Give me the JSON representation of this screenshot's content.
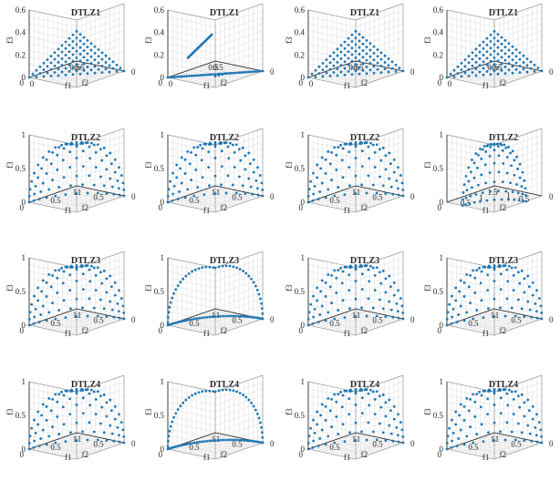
{
  "figure": {
    "rows": [
      "DTLZ1",
      "DTLZ2",
      "DTLZ3",
      "DTLZ4"
    ],
    "columns": 4,
    "marker_color": "#1f77b4",
    "grid_color": "#dcdcdc",
    "axis_color": "#262626"
  },
  "chart_data": [
    {
      "type": "scatter3d",
      "title": "DTLZ1",
      "problem": "DTLZ1",
      "front": "linear",
      "pattern": "uniform",
      "divisions": 13,
      "xlabel": "f1",
      "ylabel": "f2",
      "zlabel": "f3",
      "xlim": [
        0,
        0.5
      ],
      "ylim": [
        0,
        0.5
      ],
      "zlim": [
        0,
        0.6
      ],
      "xticks": [
        "0.5",
        "0"
      ],
      "yticks": [
        "0.5"
      ],
      "zticks": [
        "0",
        "0.2",
        "0.4",
        "0.6"
      ]
    },
    {
      "type": "scatter3d",
      "title": "DTLZ1",
      "problem": "DTLZ1",
      "front": "linear",
      "pattern": "edges",
      "divisions": 40,
      "xlabel": "f1",
      "ylabel": "f2",
      "zlabel": "f3",
      "xlim": [
        0,
        0.5
      ],
      "ylim": [
        0,
        0.5
      ],
      "zlim": [
        0,
        0.6
      ],
      "xticks": [
        "0.5",
        "0"
      ],
      "yticks": [
        "0.5"
      ],
      "zticks": [
        "0",
        "0.2",
        "0.4",
        "0.6"
      ]
    },
    {
      "type": "scatter3d",
      "title": "DTLZ1",
      "problem": "DTLZ1",
      "front": "linear",
      "pattern": "uniform",
      "divisions": 13,
      "xlabel": "f1",
      "ylabel": "f2",
      "zlabel": "f3",
      "xlim": [
        0,
        0.5
      ],
      "ylim": [
        0,
        0.5
      ],
      "zlim": [
        0,
        0.6
      ],
      "xticks": [
        "0.5",
        "0"
      ],
      "yticks": [
        "0.5"
      ],
      "zticks": [
        "0",
        "0.2",
        "0.4",
        "0.6"
      ]
    },
    {
      "type": "scatter3d",
      "title": "DTLZ1",
      "problem": "DTLZ1",
      "front": "linear",
      "pattern": "uniform",
      "divisions": 13,
      "xlabel": "f1",
      "ylabel": "f2",
      "zlabel": "f3",
      "xlim": [
        0,
        0.5
      ],
      "ylim": [
        0,
        0.5
      ],
      "zlim": [
        0,
        0.6
      ],
      "xticks": [
        "0.5",
        "0"
      ],
      "yticks": [
        "0.5"
      ],
      "zticks": [
        "0",
        "0.2",
        "0.4",
        "0.6"
      ]
    },
    {
      "type": "scatter3d",
      "title": "DTLZ2",
      "problem": "DTLZ2",
      "front": "spherical",
      "pattern": "uniform",
      "divisions": 12,
      "xlabel": "f1",
      "ylabel": "f2",
      "zlabel": "f3",
      "xlim": [
        0,
        1
      ],
      "ylim": [
        0,
        1
      ],
      "zlim": [
        0,
        1
      ],
      "xticks": [
        "0.5",
        "1"
      ],
      "yticks": [
        "0.5",
        "1"
      ],
      "zticks": [
        "0",
        "0.5",
        "1"
      ],
      "x0": "0"
    },
    {
      "type": "scatter3d",
      "title": "DTLZ2",
      "problem": "DTLZ2",
      "front": "spherical",
      "pattern": "uniform",
      "divisions": 12,
      "xlabel": "f1",
      "ylabel": "f2",
      "zlabel": "f3",
      "xlim": [
        0,
        1
      ],
      "ylim": [
        0,
        1
      ],
      "zlim": [
        0,
        1
      ],
      "xticks": [
        "0.5",
        "1"
      ],
      "yticks": [
        "0.5",
        "1"
      ],
      "zticks": [
        "0",
        "0.5",
        "1"
      ],
      "x0": "0"
    },
    {
      "type": "scatter3d",
      "title": "DTLZ2",
      "problem": "DTLZ2",
      "front": "spherical",
      "pattern": "uniform",
      "divisions": 12,
      "xlabel": "f1",
      "ylabel": "f2",
      "zlabel": "f3",
      "xlim": [
        0,
        1
      ],
      "ylim": [
        0,
        1
      ],
      "zlim": [
        0,
        1
      ],
      "xticks": [
        "0.5",
        "1"
      ],
      "yticks": [
        "0.5",
        "1"
      ],
      "zticks": [
        "0",
        "0.5",
        "1"
      ],
      "x0": "0"
    },
    {
      "type": "scatter3d",
      "title": "DTLZ2",
      "problem": "DTLZ2",
      "front": "spherical",
      "pattern": "uniform",
      "divisions": 12,
      "xlabel": "f1",
      "ylabel": "f2",
      "zlabel": "f3",
      "xlim": [
        0,
        1.5
      ],
      "ylim": [
        0,
        1.5
      ],
      "zlim": [
        0,
        1
      ],
      "xticks": [
        "0.5",
        "1"
      ],
      "yticks": [
        "0.5",
        "1",
        "1.5"
      ],
      "zticks": [
        "0",
        "0.5",
        "1"
      ],
      "x0": "0"
    },
    {
      "type": "scatter3d",
      "title": "DTLZ3",
      "problem": "DTLZ3",
      "front": "spherical",
      "pattern": "uniform",
      "divisions": 12,
      "xlabel": "f1",
      "ylabel": "f2",
      "zlabel": "f3",
      "xlim": [
        0,
        1
      ],
      "ylim": [
        0,
        1
      ],
      "zlim": [
        0,
        1
      ],
      "xticks": [
        "0.5",
        "1"
      ],
      "yticks": [
        "0.5",
        "1"
      ],
      "zticks": [
        "0",
        "0.5",
        "1"
      ],
      "x0": "0"
    },
    {
      "type": "scatter3d",
      "title": "DTLZ3",
      "problem": "DTLZ3",
      "front": "spherical",
      "pattern": "edges",
      "divisions": 40,
      "xlabel": "f1",
      "ylabel": "f2",
      "zlabel": "f3",
      "xlim": [
        0,
        1
      ],
      "ylim": [
        0,
        1
      ],
      "zlim": [
        0,
        1
      ],
      "xticks": [
        "0.5",
        "1"
      ],
      "yticks": [
        "0.5",
        "1"
      ],
      "zticks": [
        "0",
        "0.5",
        "1"
      ],
      "x0": "0"
    },
    {
      "type": "scatter3d",
      "title": "DTLZ3",
      "problem": "DTLZ3",
      "front": "spherical",
      "pattern": "uniform",
      "divisions": 12,
      "xlabel": "f1",
      "ylabel": "f2",
      "zlabel": "f3",
      "xlim": [
        0,
        1
      ],
      "ylim": [
        0,
        1
      ],
      "zlim": [
        0,
        1
      ],
      "xticks": [
        "0.5",
        "1"
      ],
      "yticks": [
        "0.5",
        "1"
      ],
      "zticks": [
        "0",
        "0.5",
        "1"
      ],
      "x0": "0"
    },
    {
      "type": "scatter3d",
      "title": "DTLZ3",
      "problem": "DTLZ3",
      "front": "spherical",
      "pattern": "uniform",
      "divisions": 12,
      "xlabel": "f1",
      "ylabel": "f2",
      "zlabel": "f3",
      "xlim": [
        0,
        1
      ],
      "ylim": [
        0,
        1
      ],
      "zlim": [
        0,
        1
      ],
      "xticks": [
        "0.5",
        "1"
      ],
      "yticks": [
        "0.5",
        "1"
      ],
      "zticks": [
        "0",
        "0.5",
        "1"
      ],
      "x0": "0"
    },
    {
      "type": "scatter3d",
      "title": "DTLZ4",
      "problem": "DTLZ4",
      "front": "spherical",
      "pattern": "uniform",
      "divisions": 12,
      "xlabel": "f1",
      "ylabel": "f2",
      "zlabel": "f3",
      "xlim": [
        0,
        1
      ],
      "ylim": [
        0,
        1
      ],
      "zlim": [
        0,
        1
      ],
      "xticks": [
        "0.5",
        "1"
      ],
      "yticks": [
        "0.5",
        "1"
      ],
      "zticks": [
        "0",
        "0.5",
        "1"
      ],
      "x0": "0"
    },
    {
      "type": "scatter3d",
      "title": "DTLZ4",
      "problem": "DTLZ4",
      "front": "spherical",
      "pattern": "edges",
      "divisions": 40,
      "xlabel": "f1",
      "ylabel": "f2",
      "zlabel": "f3",
      "xlim": [
        0,
        1
      ],
      "ylim": [
        0,
        1
      ],
      "zlim": [
        0,
        1
      ],
      "xticks": [
        "0.5",
        "1"
      ],
      "yticks": [
        "0.5",
        "1"
      ],
      "zticks": [
        "0",
        "0.5",
        "1"
      ],
      "x0": "0"
    },
    {
      "type": "scatter3d",
      "title": "DTLZ4",
      "problem": "DTLZ4",
      "front": "spherical",
      "pattern": "uniform",
      "divisions": 12,
      "xlabel": "f1",
      "ylabel": "f2",
      "zlabel": "f3",
      "xlim": [
        0,
        1
      ],
      "ylim": [
        0,
        1
      ],
      "zlim": [
        0,
        1
      ],
      "xticks": [
        "0.5",
        "1"
      ],
      "yticks": [
        "0.5",
        "1"
      ],
      "zticks": [
        "0",
        "0.5",
        "1"
      ],
      "x0": "0"
    },
    {
      "type": "scatter3d",
      "title": "DTLZ4",
      "problem": "DTLZ4",
      "front": "spherical",
      "pattern": "uniform",
      "divisions": 12,
      "xlabel": "f1",
      "ylabel": "f2",
      "zlabel": "f3",
      "xlim": [
        0,
        1
      ],
      "ylim": [
        0,
        1
      ],
      "zlim": [
        0,
        1
      ],
      "xticks": [
        "0.5",
        "1"
      ],
      "yticks": [
        "0.5",
        "1"
      ],
      "zticks": [
        "0",
        "0.5",
        "1"
      ],
      "x0": "0"
    }
  ]
}
